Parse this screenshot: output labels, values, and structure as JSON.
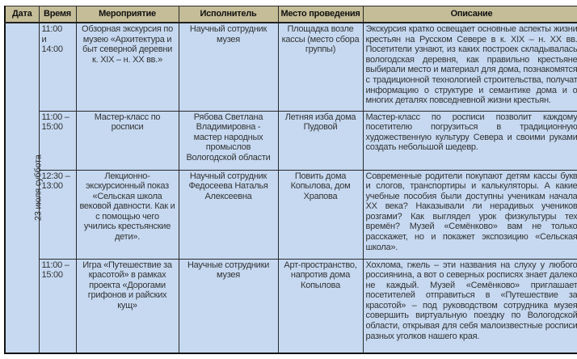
{
  "headers": [
    "Дата",
    "Время",
    "Мероприятие",
    "Исполнитель",
    "Место проведения",
    "Описание"
  ],
  "date": "23 июля суббота",
  "rows": [
    {
      "time": "11:00\n и\n14:00",
      "event": "Обзорная экскурсия по музею «Архитектура и быт северной деревни к. XIX – н. XX вв.»",
      "performer": "Научный сотрудник музея",
      "place": "Площадка возле кассы (место сбора группы)",
      "description": "Экскурсия кратко освещает основные аспекты жизни крестьян на Русском Севере в к. XIX – н. XX вв. Посетители узнают, из каких построек складывалась вологодская деревня, как правильно крестьяне выбирали место и материал для дома, познакомятся с традиционной технологией строительства, получат информацию о структуре и семантике дома и о многих деталях повседневной жизни крестьян."
    },
    {
      "time": "11:00 – 15:00",
      "event": "Мастер-класс по росписи",
      "performer": "Рябова Светлана Владимировна - мастер народных промыслов Вологодской области",
      "place": "Летняя изба дома Пудовой",
      "description": "Мастер-класс по росписи позволит каждому посетителю погрузиться в традиционную художественную культуру Севера и своими руками создать небольшой шедевр."
    },
    {
      "time": "12:30 – 13:00",
      "event": "Лекционно-экскурсионный показ «Сельская школа вековой давности. Как и с помощью чего учились крестьянские дети».",
      "performer": "Научный сотрудник Федосеева Наталья Алексеевна",
      "place": "Повить дома Копылова, дом Храпова",
      "description": "Современные родители покупают детям кассы букв и слогов, транспортиры и калькуляторы. А какие учебные пособия были доступны ученикам начала XX века? Наказывали ли нерадивых учеников розгами? Как выглядел урок физкультуры тех времён? Музей «Семёнково» вам не только расскажет, но и покажет экспозицию «Сельская школа»."
    },
    {
      "time": "11:00 – 15:00",
      "event": "Игра «Путешествие за красотой» в рамках проекта «Дорогами грифонов и райских кущ»",
      "performer": "Научные сотрудники музея",
      "place": "Арт-пространство, напротив дома Копылова",
      "description": "Хохлома, гжель – эти названия на слуху у любого россиянина, а вот о северных росписях знает далеко не каждый. Музей «Семёнково» приглашает посетителей отправиться в «Путешествие за красотой» – под руководством сотрудника музея совершить виртуальную поездку по Вологодской области, открывая для себя малоизвестные росписи разных уголков нашего края."
    }
  ]
}
